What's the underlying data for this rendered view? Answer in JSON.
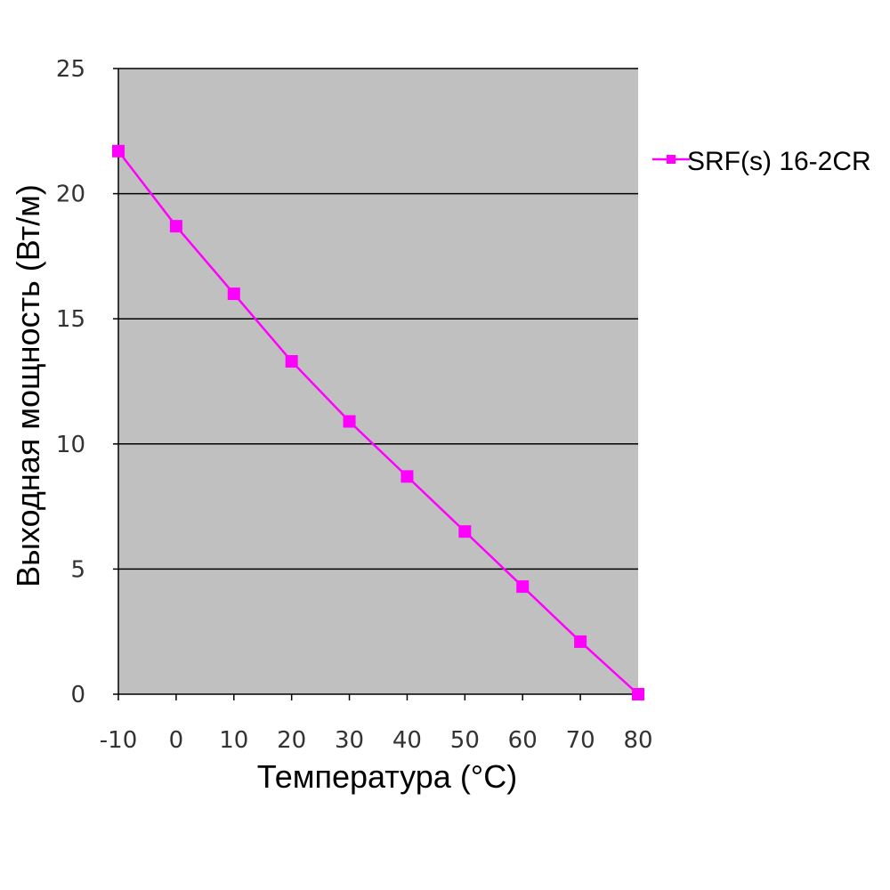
{
  "chart_data": {
    "type": "line",
    "title": "",
    "xlabel": "Температура (°C)",
    "ylabel": "Выходная мощность (Вт/м)",
    "x": [
      -10,
      0,
      10,
      20,
      30,
      40,
      50,
      60,
      70,
      80
    ],
    "xticks": [
      "-10",
      "0",
      "10",
      "20",
      "30",
      "40",
      "50",
      "60",
      "70",
      "80"
    ],
    "yticks": [
      "0",
      "5",
      "10",
      "15",
      "20",
      "25"
    ],
    "ylim": [
      0,
      25
    ],
    "xlim": [
      -10,
      80
    ],
    "grid": "horizontal",
    "legend": "right",
    "series": [
      {
        "name": "SRF(s) 16-2CR",
        "color": "#ff00ff",
        "marker": "square",
        "values": [
          21.7,
          18.7,
          16.0,
          13.3,
          10.9,
          8.7,
          6.5,
          4.3,
          2.1,
          0.0
        ]
      }
    ],
    "colors": {
      "plot_background": "#c0c0c0",
      "gridline": "#000000",
      "axis": "#000000"
    }
  }
}
